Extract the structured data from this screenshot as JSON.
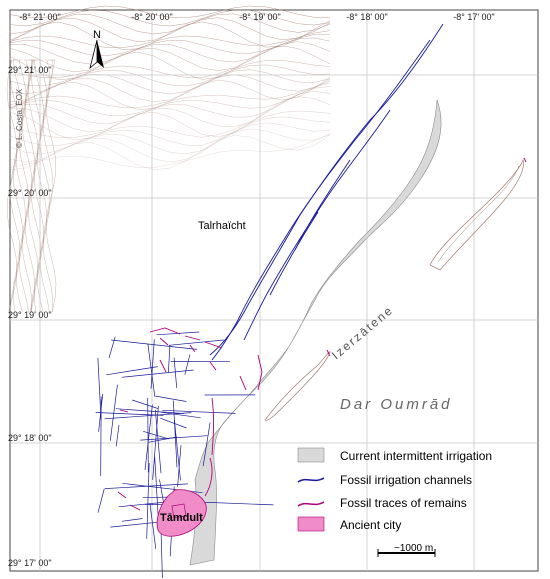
{
  "map": {
    "longitude_labels": [
      "-8° 21' 00\"",
      "-8° 20' 00\"",
      "-8° 19' 00\"",
      "-8° 18' 00\"",
      "-8° 17' 00\""
    ],
    "latitude_labels": [
      "29° 21' 00\"",
      "29° 20' 00\"",
      "29° 19' 00\"",
      "29° 18' 00\"",
      "29° 17' 00\""
    ],
    "north_label": "N",
    "credit": "© L. Costa, EOX",
    "places": {
      "talrhaicht": "Talrhaïcht",
      "tamdult": "Tāmdult",
      "izerzatene": "Izerzātene",
      "dar_oumrad": "Dar Oumrād"
    },
    "scale_bar_label": "~1000 m",
    "legend": [
      {
        "label": "Current intermittent irrigation",
        "symbol": "grey-patch",
        "color": "#d9d9d9"
      },
      {
        "label": "Fossil irrigation channels",
        "symbol": "blue-line",
        "color": "#1a1a9a"
      },
      {
        "label": "Fossil traces of remains",
        "symbol": "magenta-line",
        "color": "#b0007a"
      },
      {
        "label": "Ancient city",
        "symbol": "pink-patch",
        "color": "#f08cc8"
      }
    ],
    "colors": {
      "contour": "#a0786a",
      "irrigation_fill": "#d9d9d9",
      "channels": "#1a1a9a",
      "remains": "#b0007a",
      "city_fill": "#f08cc8",
      "grid": "#c8c8c8"
    }
  }
}
